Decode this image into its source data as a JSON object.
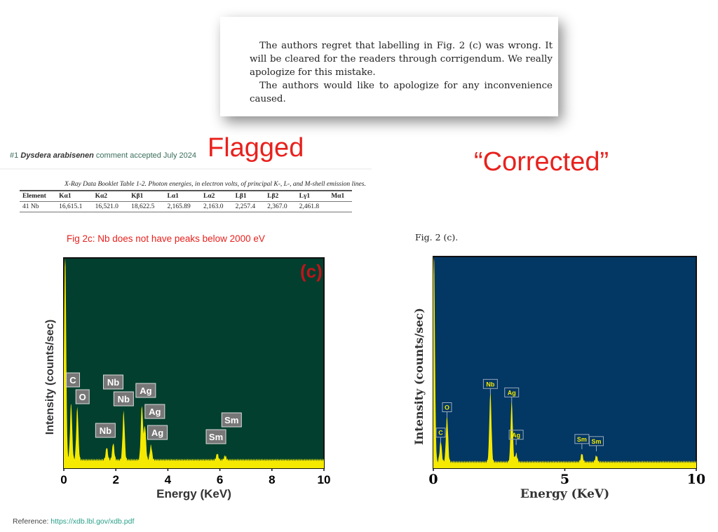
{
  "notice": {
    "paragraphs": [
      "The authors regret that labelling in Fig. 2 (c) was wrong. It will be cleared for the readers through corrigendum. We really apologize for this mistake.",
      "The authors would like to apologize for any inconvenience caused."
    ]
  },
  "flagged_label": "Flagged",
  "corrected_label": "“Corrected”",
  "comment": {
    "number": "#1",
    "author": "Dysdera arabisenen",
    "text": " comment accepted July 2024"
  },
  "xray_table": {
    "caption": "X-Ray Data Booklet  Table 1-2. Photon energies, in electron volts, of principal K-, L-, and M-shell emission lines.",
    "headers": [
      "Element",
      "Kα1",
      "Kα2",
      "Kβ1",
      "Lα1",
      "Lα2",
      "Lβ1",
      "Lβ2",
      "Lγ1",
      "Mα1"
    ],
    "rows": [
      [
        "41  Nb",
        "16,615.1",
        "16,521.0",
        "18,622.5",
        "2,165.89",
        "2,163.0",
        "2,257.4",
        "2,367.0",
        "2,461.8",
        ""
      ]
    ]
  },
  "flag_note": "Fig 2c: Nb does not have peaks below 2000 eV",
  "right_fig_label": "Fig. 2 (c).",
  "reference": {
    "prefix": "Reference: ",
    "link": "https://xdb.lbl.gov/xdb.pdf"
  },
  "chart_data": [
    {
      "type": "area",
      "panel_label": "(c)",
      "xlabel": "Energy (KeV)",
      "ylabel": "Intensity (counts/sec)",
      "xlim": [
        0,
        10
      ],
      "xticks": [
        "0",
        "2",
        "4",
        "6",
        "8",
        "10"
      ],
      "background": "#023f2e",
      "fill": "#f5e900",
      "baseline": 4,
      "peaks": [
        [
          0.05,
          100
        ],
        [
          0.28,
          27
        ],
        [
          0.52,
          25
        ],
        [
          1.65,
          6
        ],
        [
          1.9,
          8
        ],
        [
          2.3,
          23
        ],
        [
          3.0,
          26
        ],
        [
          3.12,
          16
        ],
        [
          3.35,
          7
        ],
        [
          5.9,
          3
        ],
        [
          6.2,
          2
        ]
      ],
      "labels": [
        {
          "text": "C",
          "x": 0.35,
          "y": 42
        },
        {
          "text": "O",
          "x": 0.72,
          "y": 34
        },
        {
          "text": "Nb",
          "x": 1.9,
          "y": 41
        },
        {
          "text": "Nb",
          "x": 2.3,
          "y": 33
        },
        {
          "text": "Nb",
          "x": 1.6,
          "y": 18
        },
        {
          "text": "Ag",
          "x": 3.15,
          "y": 37
        },
        {
          "text": "Ag",
          "x": 3.5,
          "y": 27
        },
        {
          "text": "Ag",
          "x": 3.6,
          "y": 17
        },
        {
          "text": "Sm",
          "x": 6.45,
          "y": 23
        },
        {
          "text": "Sm",
          "x": 5.85,
          "y": 15
        }
      ]
    },
    {
      "type": "area",
      "xlabel": "Energy (KeV)",
      "ylabel": "Intensity (counts/sec)",
      "xlim": [
        0,
        10
      ],
      "xticks": [
        "0",
        "5",
        "10"
      ],
      "background": "#033764",
      "fill": "#f5e900",
      "baseline": 3,
      "peaks": [
        [
          0.02,
          100
        ],
        [
          0.28,
          10
        ],
        [
          0.52,
          22
        ],
        [
          2.17,
          33
        ],
        [
          2.98,
          29
        ],
        [
          3.15,
          4
        ],
        [
          5.65,
          4
        ],
        [
          6.2,
          3
        ]
      ],
      "labels": [
        {
          "text": "C",
          "x": 0.28,
          "y": 13
        },
        {
          "text": "O",
          "x": 0.52,
          "y": 25
        },
        {
          "text": "Nb",
          "x": 2.17,
          "y": 36
        },
        {
          "text": "Ag",
          "x": 2.98,
          "y": 32
        },
        {
          "text": "Ag",
          "x": 3.15,
          "y": 12
        },
        {
          "text": "Sm",
          "x": 5.65,
          "y": 10
        },
        {
          "text": "Sm",
          "x": 6.2,
          "y": 9
        }
      ]
    }
  ]
}
